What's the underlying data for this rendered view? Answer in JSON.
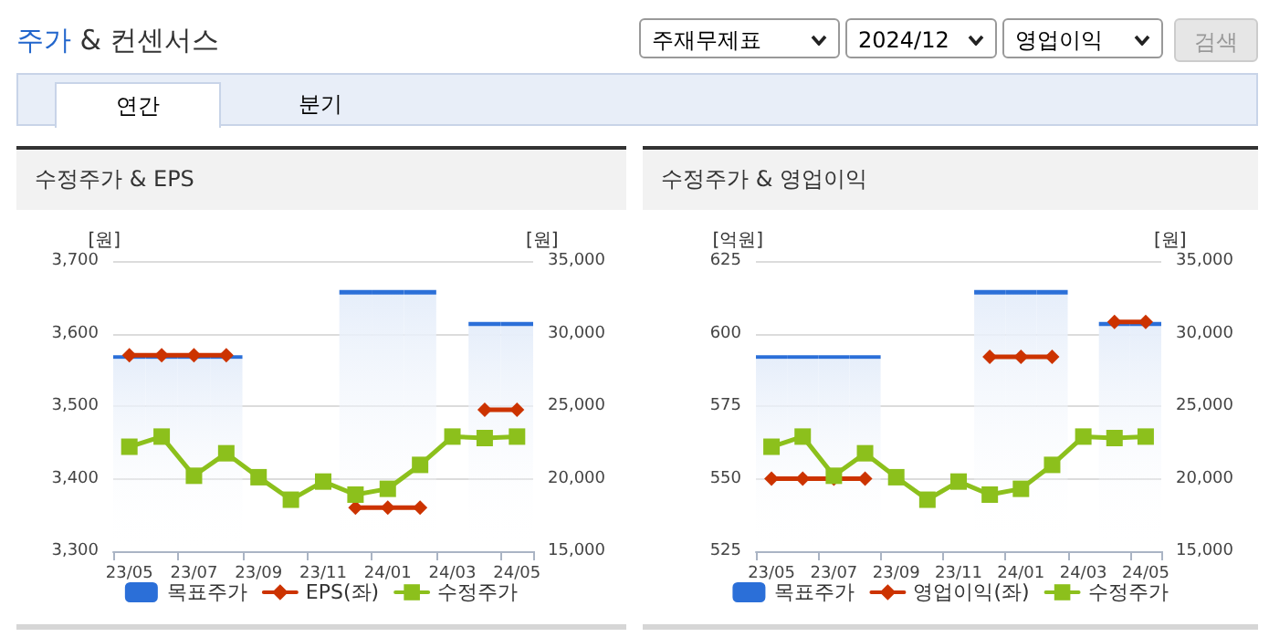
{
  "chart_data": [
    {
      "type": "other",
      "title": "주가 & 컨센서스",
      "annotations": [
        "주재무제표",
        "2024/12",
        "영업이익",
        "검색",
        "연간",
        "분기"
      ]
    },
    {
      "type": "line",
      "title": "수정주가 & EPS",
      "ylabel": "[원]",
      "y2label": "[원]",
      "categories": [
        "23/05",
        null,
        "23/07",
        null,
        "23/09",
        null,
        "23/11",
        null,
        "24/01",
        null,
        "24/03",
        null,
        "24/05"
      ],
      "series": [
        {
          "name": "목표주가",
          "type": "bar",
          "axis": "y2",
          "color": "#2b6fd8",
          "values": [
            28500,
            28500,
            28500,
            28500,
            null,
            null,
            null,
            33000,
            33000,
            33000,
            null,
            30800,
            30800
          ]
        },
        {
          "name": "EPS(좌)",
          "type": "line",
          "marker": "diamond",
          "color": "#cc3300",
          "values": [
            3570,
            3570,
            3570,
            3570,
            null,
            null,
            null,
            3360,
            3360,
            3360,
            null,
            3495,
            3495
          ]
        },
        {
          "name": "수정주가",
          "type": "line",
          "marker": "square",
          "axis": "y2",
          "color": "#8cc01c",
          "values": [
            22200,
            22900,
            20200,
            21750,
            20100,
            18550,
            19800,
            18900,
            19300,
            20950,
            22900,
            22800,
            22900
          ]
        }
      ],
      "ylim": [
        3300,
        3700
      ],
      "yticks": [
        {
          "value": 3300,
          "label": "3,300"
        },
        {
          "value": 3400,
          "label": "3,400"
        },
        {
          "value": 3500,
          "label": "3,500"
        },
        {
          "value": 3600,
          "label": "3,600"
        },
        {
          "value": 3700,
          "label": "3,700"
        }
      ],
      "y2lim": [
        15000,
        35000
      ],
      "y2ticks": [
        {
          "value": 15000,
          "label": "15,000"
        },
        {
          "value": 20000,
          "label": "20,000"
        },
        {
          "value": 25000,
          "label": "25,000"
        },
        {
          "value": 30000,
          "label": "30,000"
        },
        {
          "value": 35000,
          "label": "35,000"
        }
      ],
      "grid": "y",
      "legend": "bottom"
    },
    {
      "type": "line",
      "title": "수정주가 & 영업이익",
      "ylabel": "[억원]",
      "y2label": "[원]",
      "categories": [
        "23/05",
        null,
        "23/07",
        null,
        "23/09",
        null,
        "23/11",
        null,
        "24/01",
        null,
        "24/03",
        null,
        "24/05"
      ],
      "series": [
        {
          "name": "목표주가",
          "type": "bar",
          "axis": "y2",
          "color": "#2b6fd8",
          "values": [
            28500,
            28500,
            28500,
            28500,
            null,
            null,
            null,
            33000,
            33000,
            33000,
            null,
            30800,
            30800
          ]
        },
        {
          "name": "영업이익(좌)",
          "type": "line",
          "marker": "diamond",
          "color": "#cc3300",
          "values": [
            550,
            550,
            550,
            550,
            null,
            null,
            null,
            592,
            592,
            592,
            null,
            604,
            604
          ]
        },
        {
          "name": "수정주가",
          "type": "line",
          "marker": "square",
          "axis": "y2",
          "color": "#8cc01c",
          "values": [
            22200,
            22900,
            20200,
            21750,
            20100,
            18550,
            19800,
            18900,
            19300,
            20950,
            22900,
            22800,
            22900
          ]
        }
      ],
      "ylim": [
        525,
        625
      ],
      "yticks": [
        525,
        550,
        575,
        600,
        625
      ],
      "y2lim": [
        15000,
        35000
      ],
      "y2ticks": [
        {
          "value": 15000,
          "label": "15,000"
        },
        {
          "value": 20000,
          "label": "20,000"
        },
        {
          "value": 25000,
          "label": "25,000"
        },
        {
          "value": 30000,
          "label": "30,000"
        },
        {
          "value": 35000,
          "label": "35,000"
        }
      ],
      "grid": "y",
      "legend": "bottom"
    }
  ]
}
